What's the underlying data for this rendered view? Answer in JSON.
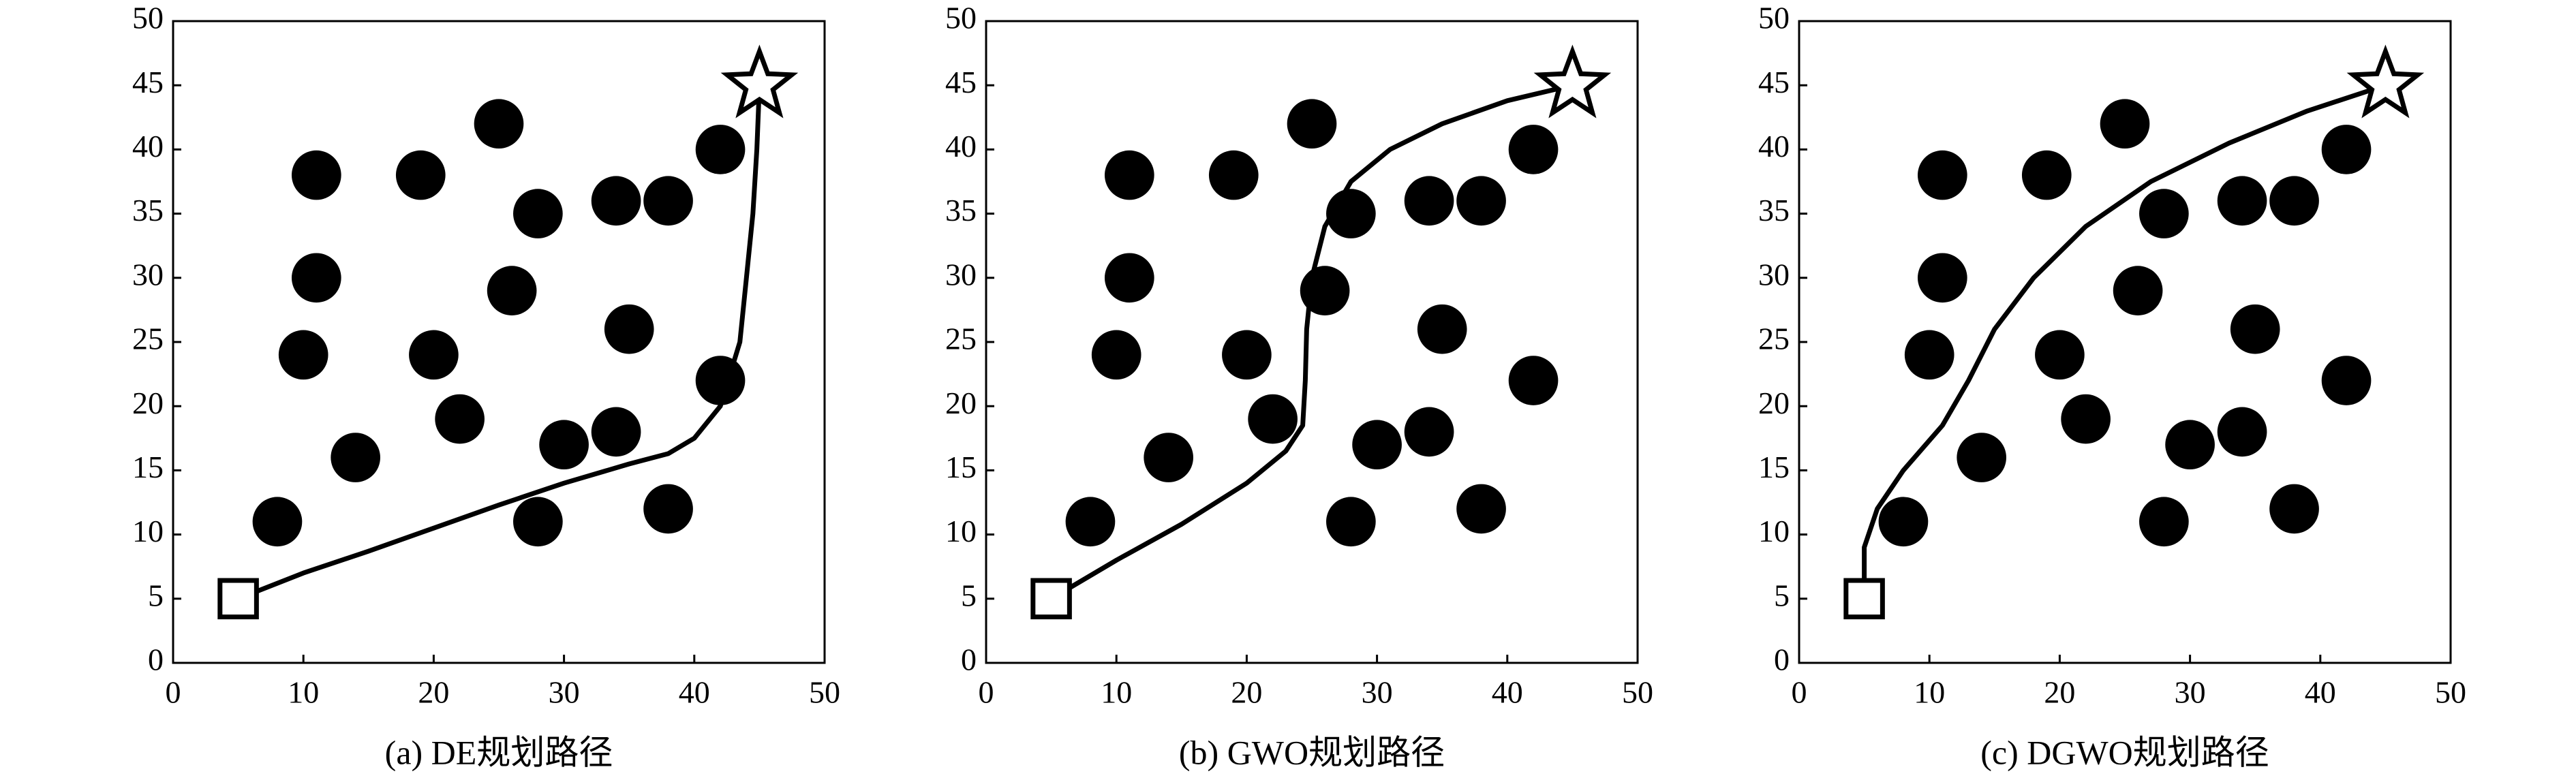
{
  "chart_data": [
    {
      "type": "scatter",
      "title": "(a) DE规划路径",
      "xlim": [
        0,
        50
      ],
      "ylim": [
        0,
        50
      ],
      "xticks": [
        0,
        10,
        20,
        30,
        40,
        50
      ],
      "yticks": [
        0,
        5,
        10,
        15,
        20,
        25,
        30,
        35,
        40,
        45,
        50
      ],
      "series": [
        {
          "marker": "circle",
          "color": "#000000",
          "x": [
            8,
            11,
            11,
            10,
            14,
            19,
            20,
            22,
            25,
            28,
            26,
            28,
            30,
            34,
            38,
            35,
            34,
            38,
            42,
            42
          ],
          "y": [
            11,
            38,
            30,
            24,
            16,
            38,
            24,
            19,
            42,
            35,
            29,
            11,
            17,
            36,
            36,
            26,
            18,
            12,
            40,
            22
          ]
        },
        {
          "marker": "line",
          "color": "#000000",
          "x": [
            5,
            10,
            15,
            20,
            25,
            30,
            35,
            38,
            40,
            42,
            43.5,
            44,
            44.5,
            44.8,
            45
          ],
          "y": [
            5,
            7,
            8.7,
            10.5,
            12.3,
            14,
            15.5,
            16.3,
            17.5,
            20,
            25,
            30,
            35,
            40,
            45
          ]
        },
        {
          "marker": "square",
          "color": "#000000",
          "x": [
            5
          ],
          "y": [
            5
          ]
        },
        {
          "marker": "star",
          "color": "#000000",
          "x": [
            45
          ],
          "y": [
            45
          ]
        }
      ]
    },
    {
      "type": "scatter",
      "title": "(b) GWO规划路径",
      "xlim": [
        0,
        50
      ],
      "ylim": [
        0,
        50
      ],
      "xticks": [
        0,
        10,
        20,
        30,
        40,
        50
      ],
      "yticks": [
        0,
        5,
        10,
        15,
        20,
        25,
        30,
        35,
        40,
        45,
        50
      ],
      "series": [
        {
          "marker": "circle",
          "color": "#000000",
          "x": [
            8,
            11,
            11,
            10,
            14,
            19,
            20,
            22,
            25,
            28,
            26,
            28,
            30,
            34,
            38,
            35,
            34,
            38,
            42,
            42
          ],
          "y": [
            11,
            38,
            30,
            24,
            16,
            38,
            24,
            19,
            42,
            35,
            29,
            11,
            17,
            36,
            36,
            26,
            18,
            12,
            40,
            22
          ]
        },
        {
          "marker": "line",
          "color": "#000000",
          "x": [
            5,
            10,
            15,
            20,
            23,
            24.3,
            24.5,
            24.6,
            25,
            26,
            28,
            31,
            35,
            40,
            45
          ],
          "y": [
            5,
            8,
            10.8,
            14,
            16.5,
            18.5,
            22,
            26,
            30,
            34,
            37.5,
            40,
            42,
            43.8,
            45
          ]
        },
        {
          "marker": "square",
          "color": "#000000",
          "x": [
            5
          ],
          "y": [
            5
          ]
        },
        {
          "marker": "star",
          "color": "#000000",
          "x": [
            45
          ],
          "y": [
            45
          ]
        }
      ]
    },
    {
      "type": "scatter",
      "title": "(c) DGWO规划路径",
      "xlim": [
        0,
        50
      ],
      "ylim": [
        0,
        50
      ],
      "xticks": [
        0,
        10,
        20,
        30,
        40,
        50
      ],
      "yticks": [
        0,
        5,
        10,
        15,
        20,
        25,
        30,
        35,
        40,
        45,
        50
      ],
      "series": [
        {
          "marker": "circle",
          "color": "#000000",
          "x": [
            8,
            11,
            11,
            10,
            14,
            19,
            20,
            22,
            25,
            28,
            26,
            28,
            30,
            34,
            38,
            35,
            34,
            38,
            42,
            42
          ],
          "y": [
            11,
            38,
            30,
            24,
            16,
            38,
            24,
            19,
            42,
            35,
            29,
            11,
            17,
            36,
            36,
            26,
            18,
            12,
            40,
            22
          ]
        },
        {
          "marker": "line",
          "color": "#000000",
          "x": [
            5,
            5,
            6,
            8,
            11,
            13,
            15,
            18,
            22,
            27,
            33,
            39,
            45
          ],
          "y": [
            5,
            9,
            12,
            15,
            18.5,
            22,
            26,
            30,
            34,
            37.5,
            40.5,
            43,
            45
          ]
        },
        {
          "marker": "square",
          "color": "#000000",
          "x": [
            5
          ],
          "y": [
            5
          ]
        },
        {
          "marker": "star",
          "color": "#000000",
          "x": [
            45
          ],
          "y": [
            45
          ]
        }
      ]
    }
  ]
}
